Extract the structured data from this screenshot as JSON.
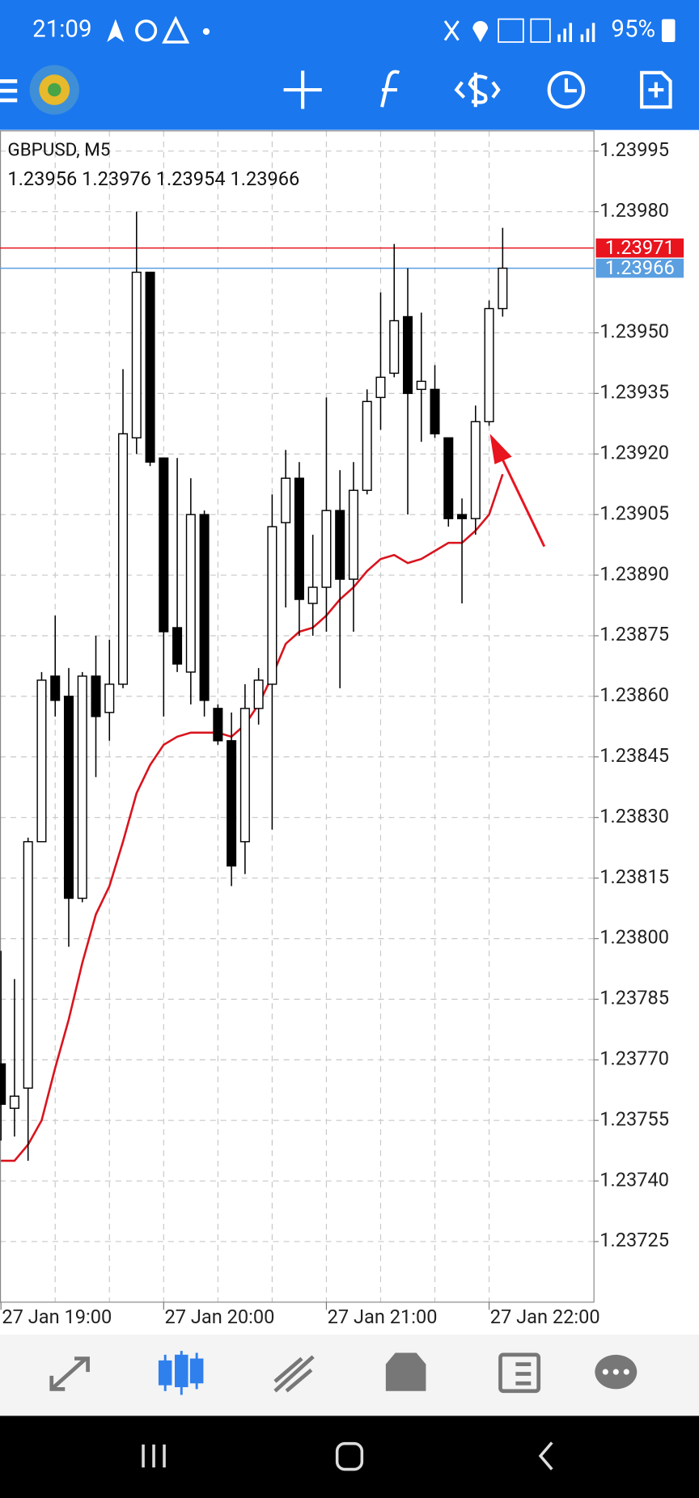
{
  "status_bar": {
    "time": "21:09",
    "battery": "95%"
  },
  "chart_data": {
    "type": "candlestick",
    "symbol_label": "GBPUSD, M5",
    "categories": [
      "27 Jan 19:00",
      null,
      null,
      null,
      null,
      null,
      null,
      null,
      null,
      null,
      null,
      null,
      "27 Jan 20:00",
      null,
      null,
      null,
      null,
      null,
      null,
      null,
      null,
      null,
      null,
      null,
      "27 Jan 21:00",
      null,
      null,
      null,
      null,
      null,
      null,
      null,
      null,
      null,
      null,
      null,
      "27 Jan 22:00",
      null
    ],
    "open": [
      1.23769,
      1.23758,
      1.23763,
      1.23824,
      1.23865,
      1.2386,
      1.2381,
      1.23865,
      1.23856,
      1.23863,
      1.23924,
      1.23965,
      1.23919,
      1.23877,
      1.23866,
      1.23905,
      1.23857,
      1.23849,
      1.23824,
      1.23857,
      1.23863,
      1.23903,
      1.23914,
      1.23883,
      1.23887,
      1.23906,
      1.23889,
      1.23911,
      1.23934,
      1.2394,
      1.23954,
      1.23936,
      1.23936,
      1.23924,
      1.23905,
      1.23904,
      1.23928,
      1.23956
    ],
    "high": [
      1.23797,
      1.2379,
      1.23825,
      1.23866,
      1.2388,
      1.23867,
      1.23866,
      1.23875,
      1.23874,
      1.23941,
      1.2398,
      1.23965,
      1.23919,
      1.23919,
      1.23914,
      1.23906,
      1.23858,
      1.23856,
      1.23863,
      1.23867,
      1.2391,
      1.23921,
      1.23918,
      1.239,
      1.23934,
      1.23916,
      1.23918,
      1.23936,
      1.2396,
      1.23972,
      1.23966,
      1.23955,
      1.23942,
      1.23924,
      1.23909,
      1.23932,
      1.23958,
      1.23976
    ],
    "low": [
      1.2375,
      1.23751,
      1.23745,
      1.23824,
      1.23855,
      1.23798,
      1.23809,
      1.2384,
      1.23849,
      1.23862,
      1.2392,
      1.23917,
      1.23855,
      1.23866,
      1.23858,
      1.23855,
      1.23848,
      1.23813,
      1.23816,
      1.23853,
      1.23827,
      1.23882,
      1.23875,
      1.23875,
      1.23876,
      1.23862,
      1.23876,
      1.2391,
      1.23926,
      1.23939,
      1.23905,
      1.23923,
      1.23924,
      1.23902,
      1.23883,
      1.239,
      1.23927,
      1.23954
    ],
    "close": [
      1.23759,
      1.23761,
      1.23824,
      1.23864,
      1.23859,
      1.2381,
      1.23865,
      1.23855,
      1.23863,
      1.23925,
      1.23965,
      1.23918,
      1.23876,
      1.23868,
      1.23905,
      1.23859,
      1.23849,
      1.23818,
      1.23857,
      1.23864,
      1.23902,
      1.23914,
      1.23884,
      1.23887,
      1.23906,
      1.23889,
      1.23911,
      1.23933,
      1.23939,
      1.23953,
      1.23935,
      1.23938,
      1.23925,
      1.23904,
      1.23904,
      1.23928,
      1.23956,
      1.23966
    ],
    "up_color": "#ffffff",
    "down_color": "#000000",
    "overlay": {
      "color": "#d9141e",
      "values": [
        1.23745,
        1.23745,
        1.23749,
        1.23755,
        1.23768,
        1.2378,
        1.23794,
        1.23806,
        1.23813,
        1.23824,
        1.23836,
        1.23843,
        1.23848,
        1.2385,
        1.23851,
        1.23851,
        1.23851,
        1.2385,
        1.23853,
        1.23858,
        1.23865,
        1.23873,
        1.23876,
        1.23877,
        1.2388,
        1.23884,
        1.23887,
        1.23891,
        1.23894,
        1.23895,
        1.23893,
        1.23894,
        1.23896,
        1.23898,
        1.23898,
        1.23901,
        1.23905,
        1.23915
      ]
    },
    "price_lines": [
      {
        "value": 1.23971,
        "color": "#e8141e"
      },
      {
        "value": 1.23966,
        "color": "#5a9fe0"
      }
    ],
    "ylim": [
      1.2371,
      1.24
    ],
    "yticks": [
      1.23995,
      {
        "value": 1.2398,
        "label": "1.23980"
      },
      {
        "value": 1.2395,
        "label": "1.23950"
      },
      1.23935,
      {
        "value": 1.2392,
        "label": "1.23920"
      },
      1.23905,
      {
        "value": 1.2389,
        "label": "1.23890"
      },
      1.23875,
      {
        "value": 1.2386,
        "label": "1.23860"
      },
      1.23845,
      {
        "value": 1.2383,
        "label": "1.23830"
      },
      1.23815,
      {
        "value": 1.238,
        "label": "1.23800"
      },
      1.23785,
      {
        "value": 1.2377,
        "label": "1.23770"
      },
      1.23755,
      {
        "value": 1.2374,
        "label": "1.23740"
      },
      1.23725
    ],
    "grid": true
  }
}
